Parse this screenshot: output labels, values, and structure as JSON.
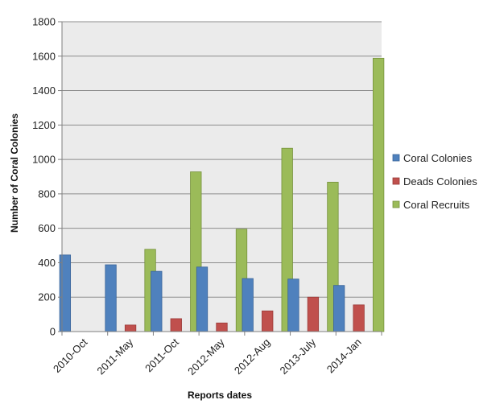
{
  "chart_data": {
    "type": "bar",
    "xlabel": "Reports dates",
    "ylabel": "Number of Coral Colonies",
    "ylim": [
      0,
      1800
    ],
    "ytick_step": 200,
    "grid": true,
    "legend_position": "right",
    "categories": [
      "2010-Oct",
      "2011-May",
      "2011-Oct",
      "2012-May",
      "2012-Aug",
      "2013-July",
      "2014-Jan"
    ],
    "series": [
      {
        "name": "Coral Colonies",
        "color": "#4f81bd",
        "stroke": "#3a659a",
        "values": [
          445,
          388,
          350,
          375,
          308,
          305,
          268
        ]
      },
      {
        "name": "Deads Colonies",
        "color": "#c0504d",
        "stroke": "#9a3b39",
        "values": [
          0,
          38,
          75,
          50,
          120,
          200,
          155
        ]
      },
      {
        "name": "Coral Recruits",
        "color": "#9bbb59",
        "stroke": "#76923c",
        "values": [
          0,
          478,
          928,
          595,
          1065,
          868,
          1588
        ]
      }
    ]
  },
  "colors": {
    "plot_background": "#ebebeb",
    "gridline": "#8c8c8c",
    "axis": "#7f7f7f"
  }
}
